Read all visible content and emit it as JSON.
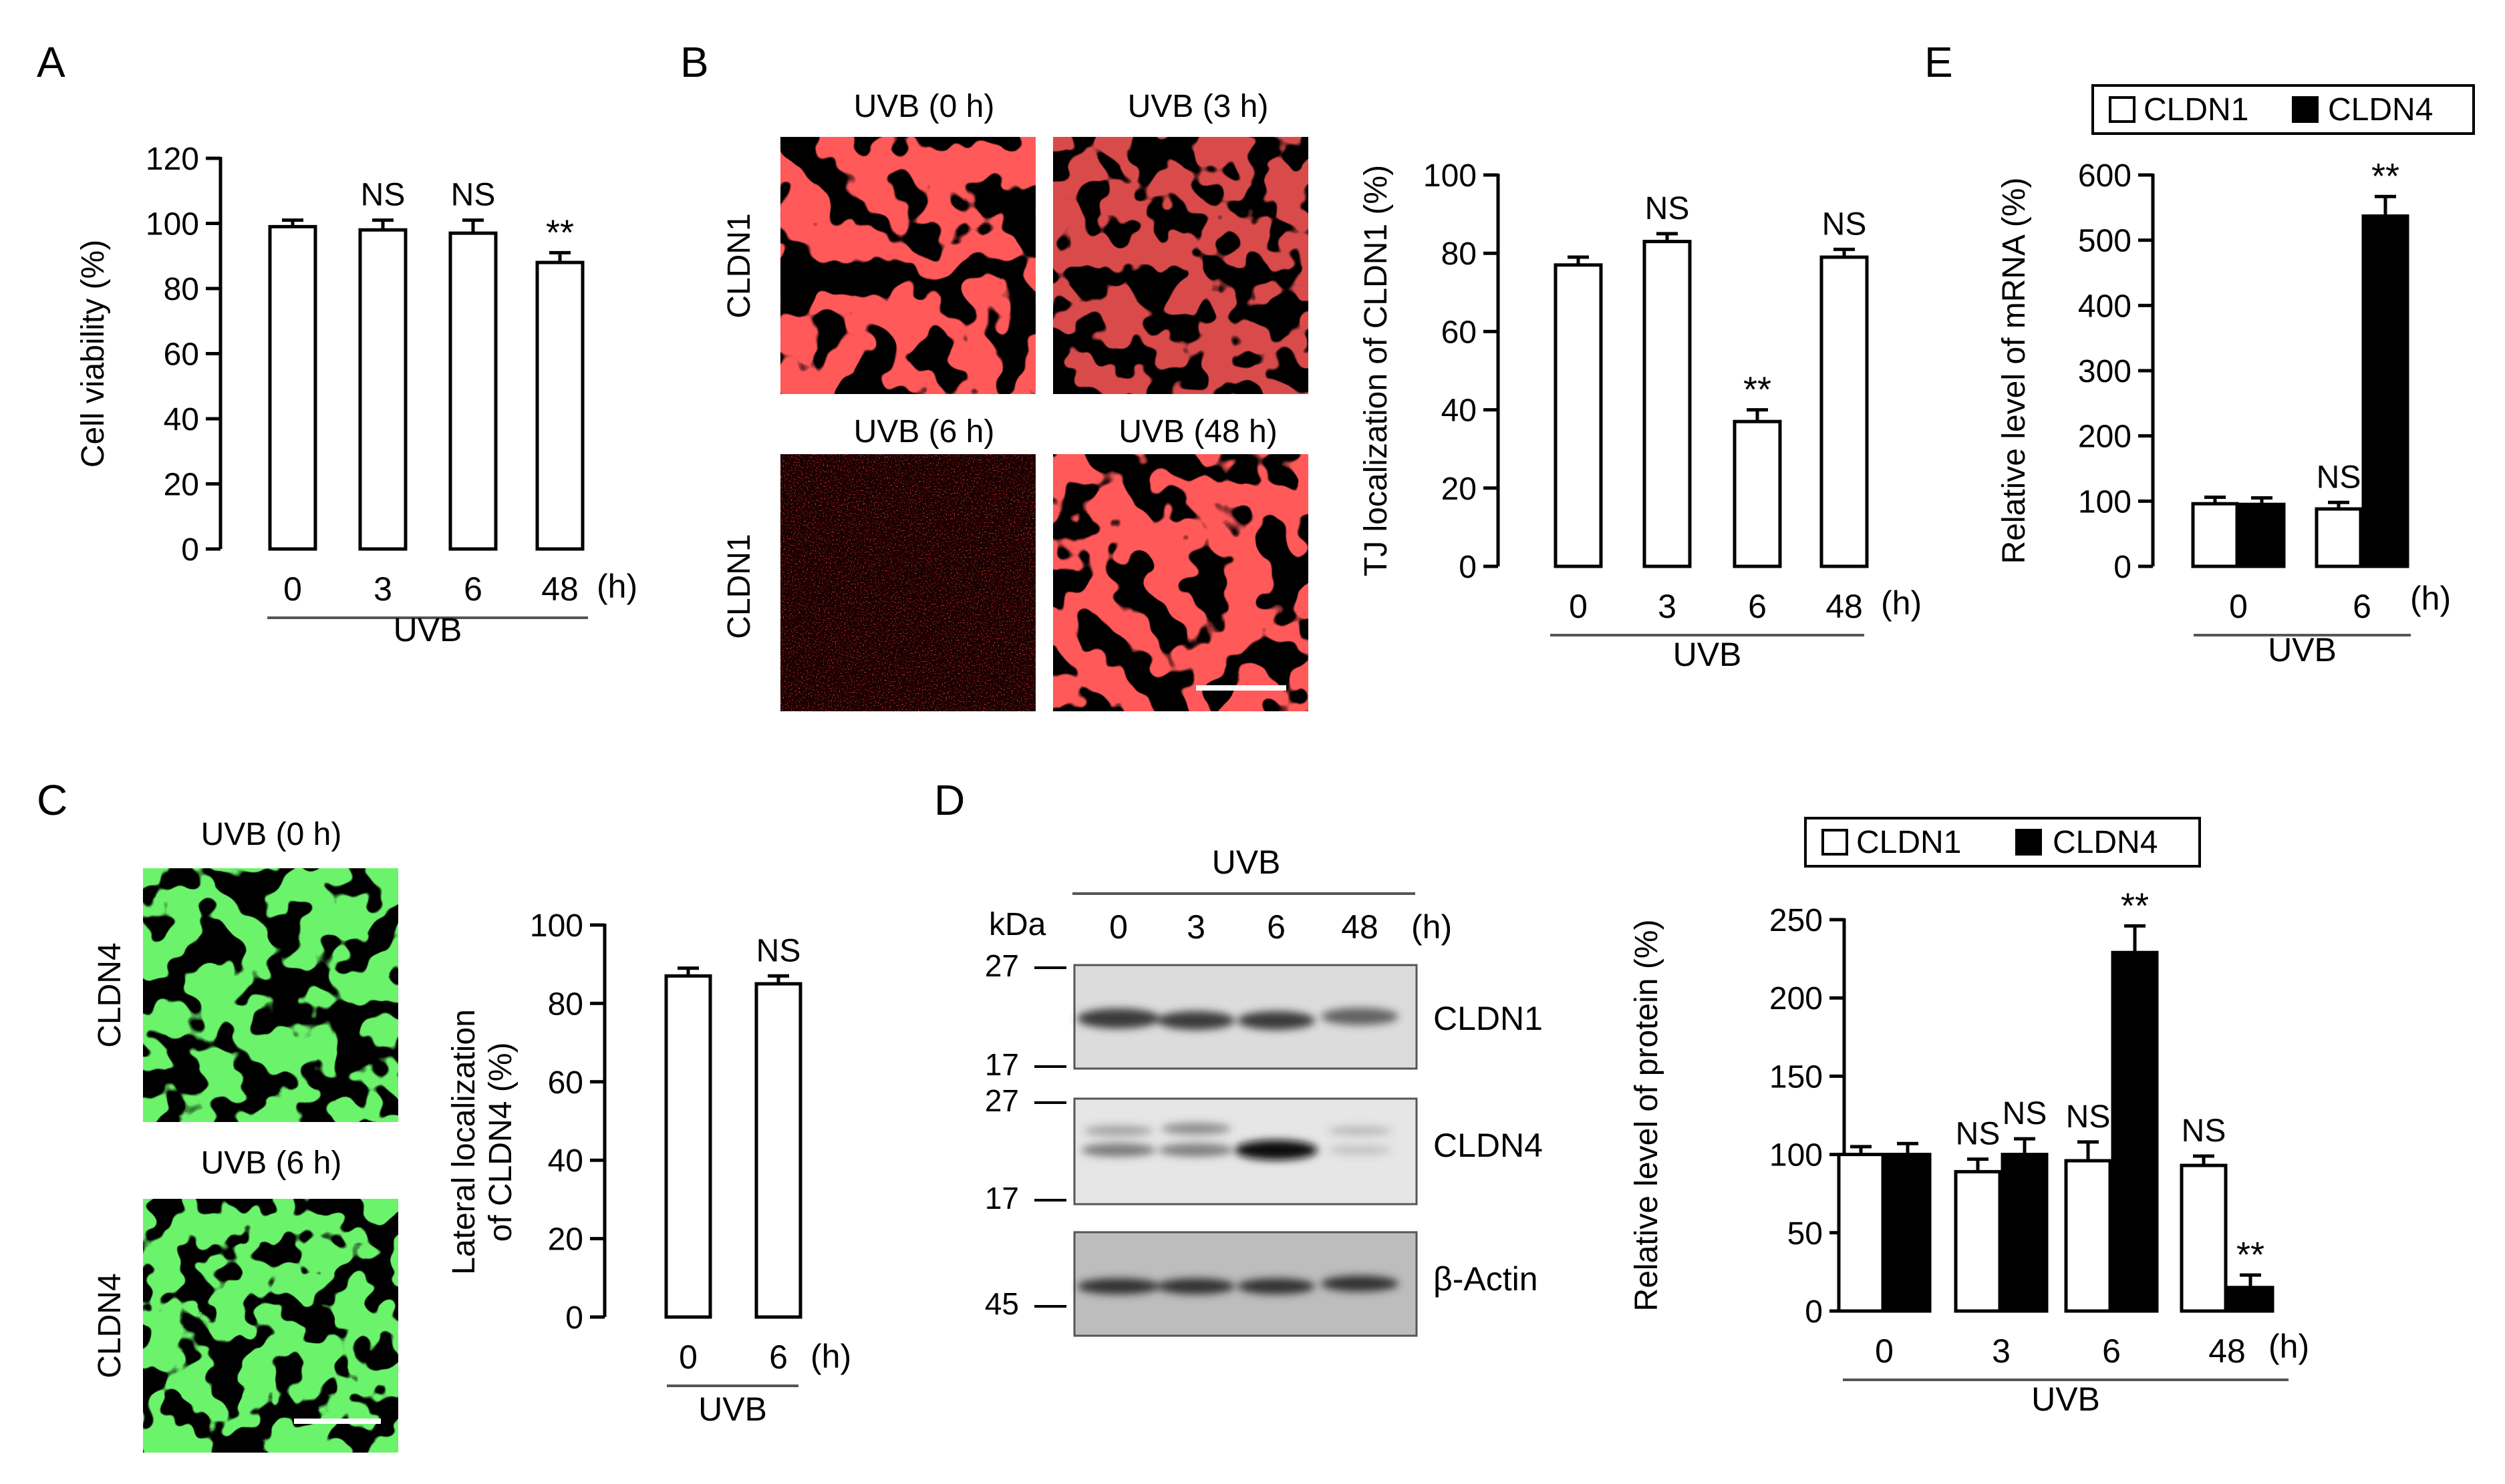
{
  "colors": {
    "claudin1_stain": "#ff1a1a",
    "claudin4_stain": "#22dd22",
    "bar_open": "#ffffff",
    "bar_filled": "#000000"
  },
  "panels": {
    "A": {
      "letter": "A",
      "chart_data": {
        "type": "bar",
        "ylabel": "Cell viability (%)",
        "categories": [
          "0",
          "3",
          "6",
          "48"
        ],
        "unit_label": "(h)",
        "group_label": "UVB",
        "yticks": [
          "0",
          "20",
          "40",
          "60",
          "80",
          "100",
          "120"
        ],
        "ylim": [
          0,
          120
        ],
        "values": [
          99,
          98,
          97,
          88
        ],
        "errors": [
          2,
          3,
          4,
          3
        ],
        "sig": [
          "",
          "NS",
          "NS",
          "**"
        ]
      }
    },
    "B": {
      "letter": "B",
      "micrographs": {
        "titles": [
          "UVB (0 h)",
          "UVB (3 h)",
          "UVB (6 h)",
          "UVB (48 h)"
        ],
        "row_labels": [
          "CLDN1",
          "CLDN1"
        ]
      },
      "chart_data": {
        "type": "bar",
        "ylabel": "TJ localization of CLDN1 (%)",
        "categories": [
          "0",
          "3",
          "6",
          "48"
        ],
        "unit_label": "(h)",
        "group_label": "UVB",
        "yticks": [
          "0",
          "20",
          "40",
          "60",
          "80",
          "100"
        ],
        "ylim": [
          0,
          100
        ],
        "values": [
          77,
          83,
          37,
          79
        ],
        "errors": [
          2,
          2,
          3,
          2
        ],
        "sig": [
          "",
          "NS",
          "**",
          "NS"
        ]
      }
    },
    "C": {
      "letter": "C",
      "micrographs": {
        "titles": [
          "UVB (0 h)",
          "UVB (6 h)"
        ],
        "row_labels": [
          "CLDN4",
          "CLDN4"
        ]
      },
      "chart_data": {
        "type": "bar",
        "ylabel_lines": [
          "Lateral localization",
          "of CLDN4 (%)"
        ],
        "categories": [
          "0",
          "6"
        ],
        "unit_label": "(h)",
        "group_label": "UVB",
        "yticks": [
          "0",
          "20",
          "40",
          "60",
          "80",
          "100"
        ],
        "ylim": [
          0,
          100
        ],
        "values": [
          87,
          85
        ],
        "errors": [
          2,
          2
        ],
        "sig": [
          "",
          "NS"
        ]
      }
    },
    "D": {
      "letter": "D",
      "blot": {
        "group_label": "UVB",
        "kda_label": "kDa",
        "lanes": [
          "0",
          "3",
          "6",
          "48"
        ],
        "unit_label": "(h)",
        "markers": [
          "27",
          "17",
          "27",
          "17",
          "45"
        ],
        "proteins": [
          "CLDN1",
          "CLDN4",
          "β-Actin"
        ]
      },
      "chart_data": {
        "type": "bar",
        "ylabel": "Relative level of protein (%)",
        "legend": [
          "CLDN1",
          "CLDN4"
        ],
        "categories": [
          "0",
          "3",
          "6",
          "48"
        ],
        "unit_label": "(h)",
        "group_label": "UVB",
        "yticks": [
          "0",
          "50",
          "100",
          "150",
          "200",
          "250"
        ],
        "ylim": [
          0,
          250
        ],
        "series": [
          {
            "name": "CLDN1",
            "values": [
              100,
              89,
              96,
              93
            ],
            "errors": [
              5,
              8,
              12,
              6
            ],
            "sig": [
              "",
              "NS",
              "NS",
              "NS"
            ]
          },
          {
            "name": "CLDN4",
            "values": [
              100,
              100,
              229,
              15
            ],
            "errors": [
              7,
              10,
              17,
              8
            ],
            "sig": [
              "",
              "NS",
              "**",
              "**"
            ]
          }
        ]
      }
    },
    "E": {
      "letter": "E",
      "chart_data": {
        "type": "bar",
        "ylabel": "Relative level of mRNA (%)",
        "legend": [
          "CLDN1",
          "CLDN4"
        ],
        "categories": [
          "0",
          "6"
        ],
        "unit_label": "(h)",
        "group_label": "UVB",
        "yticks": [
          "0",
          "100",
          "200",
          "300",
          "400",
          "500",
          "600"
        ],
        "ylim": [
          0,
          600
        ],
        "series": [
          {
            "name": "CLDN1",
            "values": [
              96,
              88
            ],
            "errors": [
              10,
              10
            ],
            "sig": [
              "",
              "NS"
            ]
          },
          {
            "name": "CLDN4",
            "values": [
              95,
              537
            ],
            "errors": [
              10,
              30
            ],
            "sig": [
              "",
              "**"
            ]
          }
        ]
      }
    }
  }
}
